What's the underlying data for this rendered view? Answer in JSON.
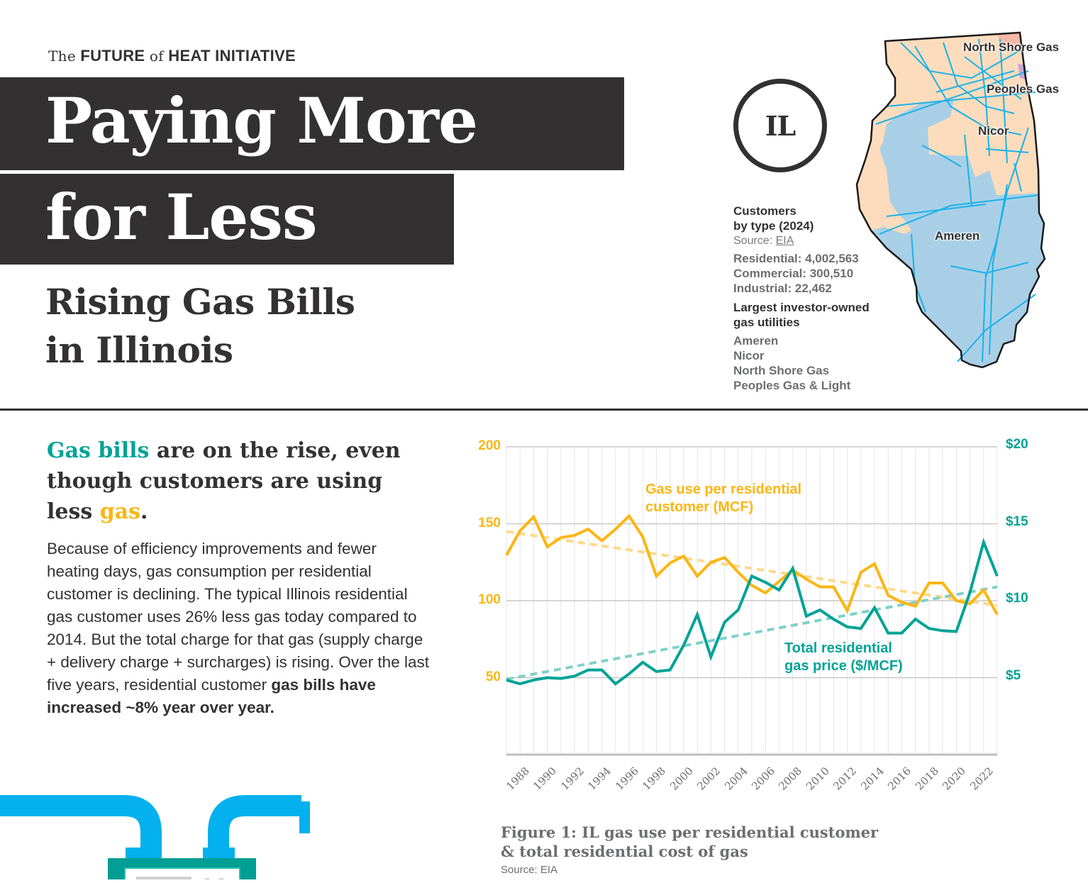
{
  "header": {
    "brand_the": "The",
    "brand_future": "FUTURE",
    "brand_of": "of",
    "brand_rest": "HEAT INITIATIVE",
    "title_line1": "Paying More",
    "title_line2": "for Less",
    "subtitle_line1": "Rising Gas Bills",
    "subtitle_line2": "in Illinois"
  },
  "state_badge": "IL",
  "customers": {
    "heading_line1": "Customers",
    "heading_line2": "by type (2024)",
    "source_prefix": "Source:",
    "source_link": "EIA",
    "residential": "Residential: 4,002,563",
    "commercial": "Commercial: 300,510",
    "industrial": "Industrial: 22,462",
    "utilities_heading_line1": "Largest investor-owned",
    "utilities_heading_line2": "gas utilities",
    "utilities": [
      "Ameren",
      "Nicor",
      "North Shore Gas",
      "Peoples Gas & Light"
    ]
  },
  "map": {
    "labels": {
      "north_shore": "North Shore Gas",
      "peoples": "Peoples Gas",
      "nicor": "Nicor",
      "ameren": "Ameren"
    },
    "colors": {
      "ameren": "#a9cfe6",
      "nicor": "#fcdcbc",
      "north_shore": "#f6b8a6",
      "peoples": "#c9a6d6",
      "pipelines": "#1ab2ea",
      "outline": "#1a1a1a"
    }
  },
  "lead": {
    "part1": "Gas bills",
    "part2": " are on the rise, even though customers are using less ",
    "part3": "gas",
    "part4": "."
  },
  "body": {
    "text": "Because of efficiency improvements and fewer heating days, gas consumption per residential customer is declining. The typical Illinois residential gas customer uses 26% less gas today compared to 2014. But the total charge for that gas (supply charge + delivery charge + surcharges) is rising. Over the last five years, residential customer ",
    "bold": "gas bills have increased ~8% year over year."
  },
  "colors": {
    "gold": "#fbb614",
    "teal": "#00a396",
    "dark": "#323031",
    "gray_text": "#6d6e71"
  },
  "chart_data": {
    "type": "line",
    "title": "Figure 1: IL gas use per residential customer & total residential cost of gas",
    "caption_line1": "Figure 1: IL gas use per residential customer",
    "caption_line2": "& total residential cost of gas",
    "source": "Source: EIA",
    "x": [
      1987,
      1988,
      1989,
      1990,
      1991,
      1992,
      1993,
      1994,
      1995,
      1996,
      1997,
      1998,
      1999,
      2000,
      2001,
      2002,
      2003,
      2004,
      2005,
      2006,
      2007,
      2008,
      2009,
      2010,
      2011,
      2012,
      2013,
      2014,
      2015,
      2016,
      2017,
      2018,
      2019,
      2020,
      2021,
      2022,
      2023
    ],
    "xticks": [
      "1988",
      "1990",
      "1992",
      "1994",
      "1996",
      "1998",
      "2000",
      "2002",
      "2004",
      "2006",
      "2008",
      "2010",
      "2012",
      "2014",
      "2016",
      "2018",
      "2020",
      "2022"
    ],
    "xlim": [
      1987,
      2023
    ],
    "series": [
      {
        "name": "Gas use per residential customer (MCF)",
        "axis": "left",
        "color": "#fbb614",
        "values": [
          129.5,
          145.5,
          154.5,
          135,
          141,
          142.5,
          146.5,
          139,
          146.5,
          155,
          141.5,
          116,
          124.5,
          129,
          116,
          125,
          128,
          118.5,
          110,
          105,
          112.5,
          120,
          114,
          109,
          109,
          93.5,
          118.5,
          124,
          103.5,
          99,
          96.5,
          111.5,
          111.5,
          100,
          98,
          107,
          91
        ],
        "trend": [
          145,
          97
        ]
      },
      {
        "name": "Total residential gas price ($/MCF)",
        "axis": "right",
        "color": "#00a396",
        "values": [
          4.85,
          4.6,
          4.85,
          5.0,
          4.95,
          5.1,
          5.5,
          5.5,
          4.6,
          5.25,
          6.0,
          5.4,
          5.5,
          7.1,
          9.1,
          6.35,
          8.6,
          9.4,
          11.6,
          11.2,
          10.7,
          12.1,
          9.0,
          9.4,
          8.8,
          8.3,
          8.2,
          9.55,
          7.9,
          7.9,
          8.8,
          8.2,
          8.05,
          8.0,
          10.55,
          13.8,
          11.6
        ],
        "trend": [
          4.9,
          10.9
        ]
      }
    ],
    "left_axis": {
      "ylim": [
        0,
        200
      ],
      "ticks": [
        "200",
        "150",
        "100",
        "50"
      ],
      "tick_values": [
        200,
        150,
        100,
        50
      ]
    },
    "right_axis": {
      "ylim": [
        0,
        20
      ],
      "ticks": [
        "$20",
        "$15",
        "$10",
        "$5"
      ],
      "tick_values": [
        20,
        15,
        10,
        5
      ]
    },
    "series_label_gold_line1": "Gas use per residential",
    "series_label_gold_line2": "customer (MCF)",
    "series_label_teal_line1": "Total residential",
    "series_label_teal_line2": "gas price ($/MCF)",
    "grid": true,
    "legend": "inline-annotations"
  }
}
